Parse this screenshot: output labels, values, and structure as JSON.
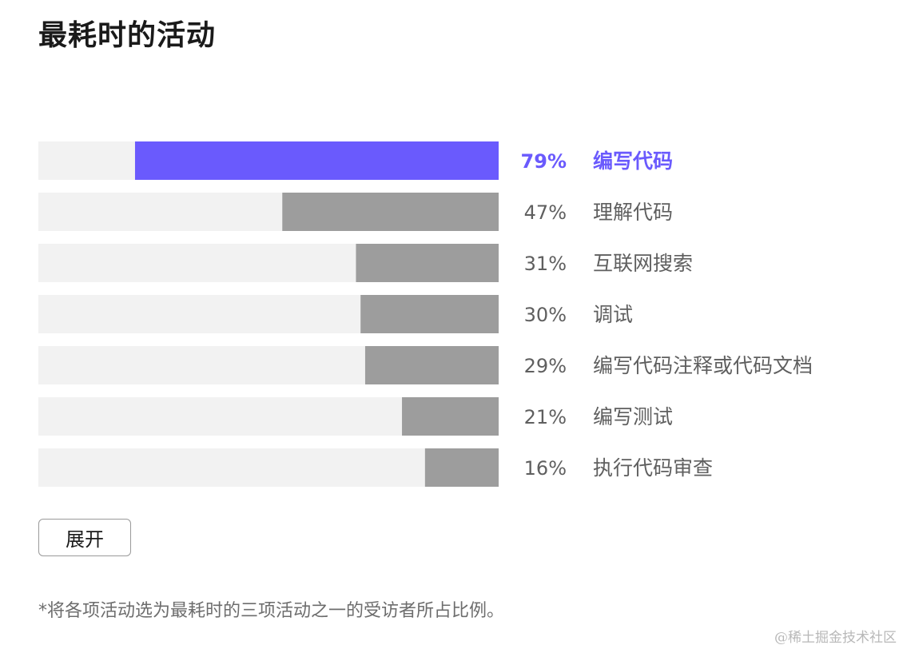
{
  "title": "最耗时的活动",
  "colors": {
    "highlight": "#6a5afd",
    "bar": "#9d9d9d",
    "track": "#f2f2f2",
    "label": "#5f5f5f"
  },
  "chart_data": {
    "type": "bar",
    "orientation": "horizontal",
    "categories": [
      "编写代码",
      "理解代码",
      "互联网搜索",
      "调试",
      "编写代码注释或代码文档",
      "编写测试",
      "执行代码审查"
    ],
    "values": [
      79,
      47,
      31,
      30,
      29,
      21,
      16
    ],
    "value_labels": [
      "79%",
      "47%",
      "31%",
      "30%",
      "29%",
      "21%",
      "16%"
    ],
    "highlighted_index": 0,
    "unit": "%",
    "xlim": [
      0,
      100
    ],
    "grid": false,
    "legend": "none"
  },
  "expand_button_label": "展开",
  "footnote": "*将各项活动选为最耗时的三项活动之一的受访者所占比例。",
  "watermark": "@稀土掘金技术社区"
}
